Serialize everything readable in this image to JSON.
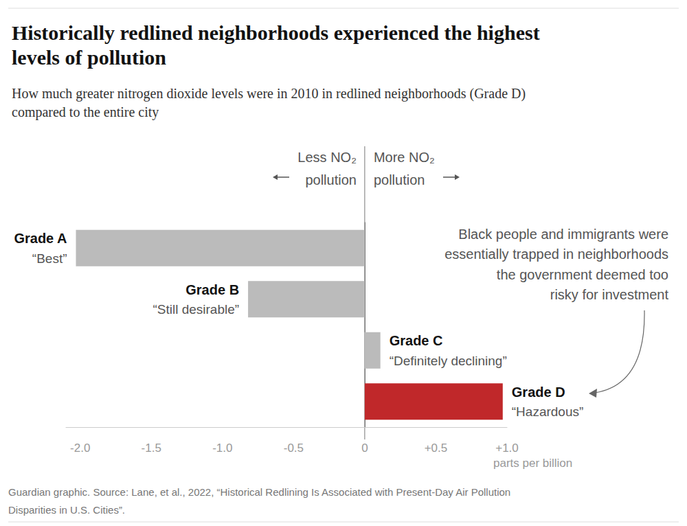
{
  "chart_data": {
    "type": "bar",
    "orientation": "horizontal",
    "title": "Historically redlined neighborhoods experienced the highest\nlevels of pollution",
    "subtitle": "How much greater nitrogen dioxide levels were in 2010 in redlined neighborhoods (Grade D)\ncompared to the entire city",
    "categories": [
      "Grade A",
      "Grade B",
      "Grade C",
      "Grade D"
    ],
    "descriptions": [
      "“Best”",
      "“Still desirable”",
      "“Definitely declining”",
      "“Hazardous”"
    ],
    "values": [
      -2.03,
      -0.82,
      0.11,
      0.97
    ],
    "colors": [
      "#bbbbbb",
      "#bbbbbb",
      "#bbbbbb",
      "#c0282a"
    ],
    "xlim": [
      -2.1,
      1.0
    ],
    "xticks": [
      {
        "value": -2,
        "label": "-2.0"
      },
      -1.5,
      {
        "value": -1,
        "label": "-1.0"
      },
      -0.5,
      0,
      {
        "value": 0.5,
        "label": "+0.5"
      },
      {
        "value": 1,
        "label": "+1.0"
      }
    ],
    "xlabel": "parts per billion",
    "left_label": "Less NO₂\npollution",
    "right_label": "More NO₂\npollution",
    "annotation": "Black people and immigrants were\nessentially trapped in neighborhoods\nthe government deemed too\nrisky for investment",
    "source": "Guardian graphic. Source: Lane, et al., 2022, “Historical Redlining Is Associated with Present-Day Air Pollution\nDisparities in U.S. Cities”.",
    "grid": false
  }
}
